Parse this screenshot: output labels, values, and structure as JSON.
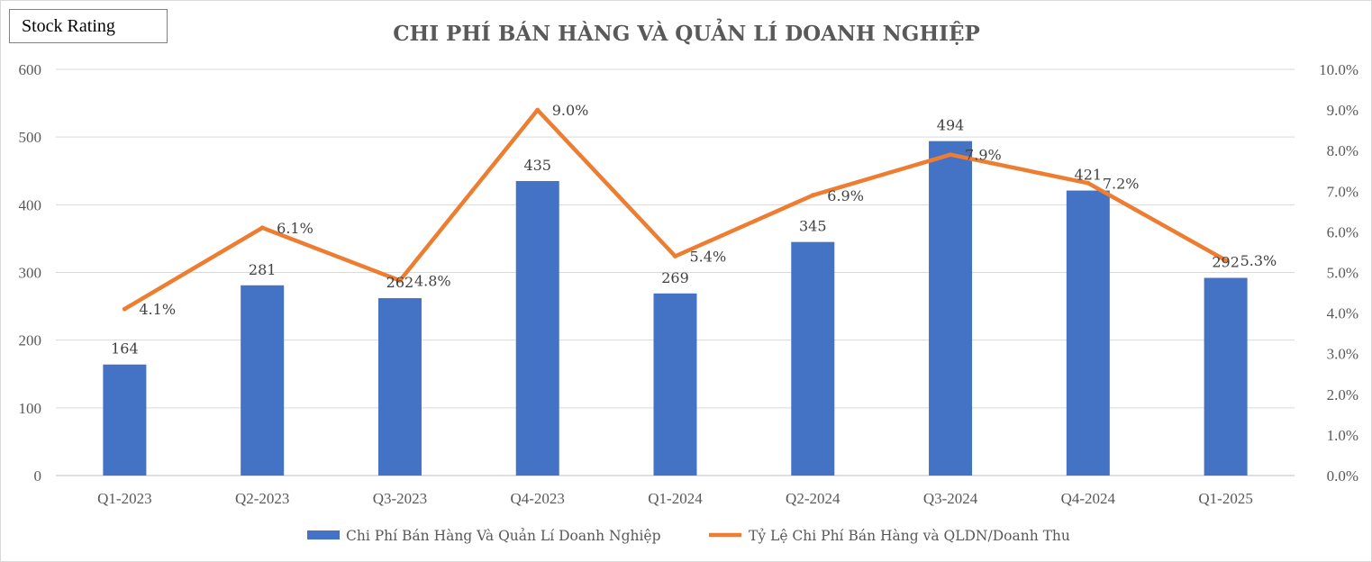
{
  "badge": {
    "label": "Stock Rating"
  },
  "chart_data": {
    "type": "bar",
    "title": "CHI PHÍ BÁN HÀNG VÀ QUẢN LÍ DOANH NGHIỆP",
    "categories": [
      "Q1-2023",
      "Q2-2023",
      "Q3-2023",
      "Q4-2023",
      "Q1-2024",
      "Q2-2024",
      "Q3-2024",
      "Q4-2024",
      "Q1-2025"
    ],
    "series": [
      {
        "name": "Chi Phí Bán Hàng Và Quản Lí Doanh Nghiệp",
        "type": "bar",
        "axis": "left",
        "color": "#4472c4",
        "values": [
          164,
          281,
          262,
          435,
          269,
          345,
          494,
          421,
          292
        ],
        "labels": [
          "164",
          "281",
          "262",
          "435",
          "269",
          "345",
          "494",
          "421",
          "292"
        ]
      },
      {
        "name": "Tỷ Lệ Chi Phí Bán Hàng và QLDN/Doanh Thu",
        "type": "line",
        "axis": "right",
        "color": "#ed7d31",
        "values": [
          4.1,
          6.1,
          4.8,
          9.0,
          5.4,
          6.9,
          7.9,
          7.2,
          5.3
        ],
        "labels": [
          "4.1%",
          "6.1%",
          "4.8%",
          "9.0%",
          "5.4%",
          "6.9%",
          "7.9%",
          "7.2%",
          "5.3%"
        ]
      }
    ],
    "y_left": {
      "range": [
        0,
        600
      ],
      "ticks": [
        "0",
        "100",
        "200",
        "300",
        "400",
        "500",
        "600"
      ]
    },
    "y_right": {
      "range": [
        0,
        10
      ],
      "ticks": [
        "0.0%",
        "1.0%",
        "2.0%",
        "3.0%",
        "4.0%",
        "5.0%",
        "6.0%",
        "7.0%",
        "8.0%",
        "9.0%",
        "10.0%"
      ]
    },
    "grid": true,
    "legend_position": "bottom"
  }
}
